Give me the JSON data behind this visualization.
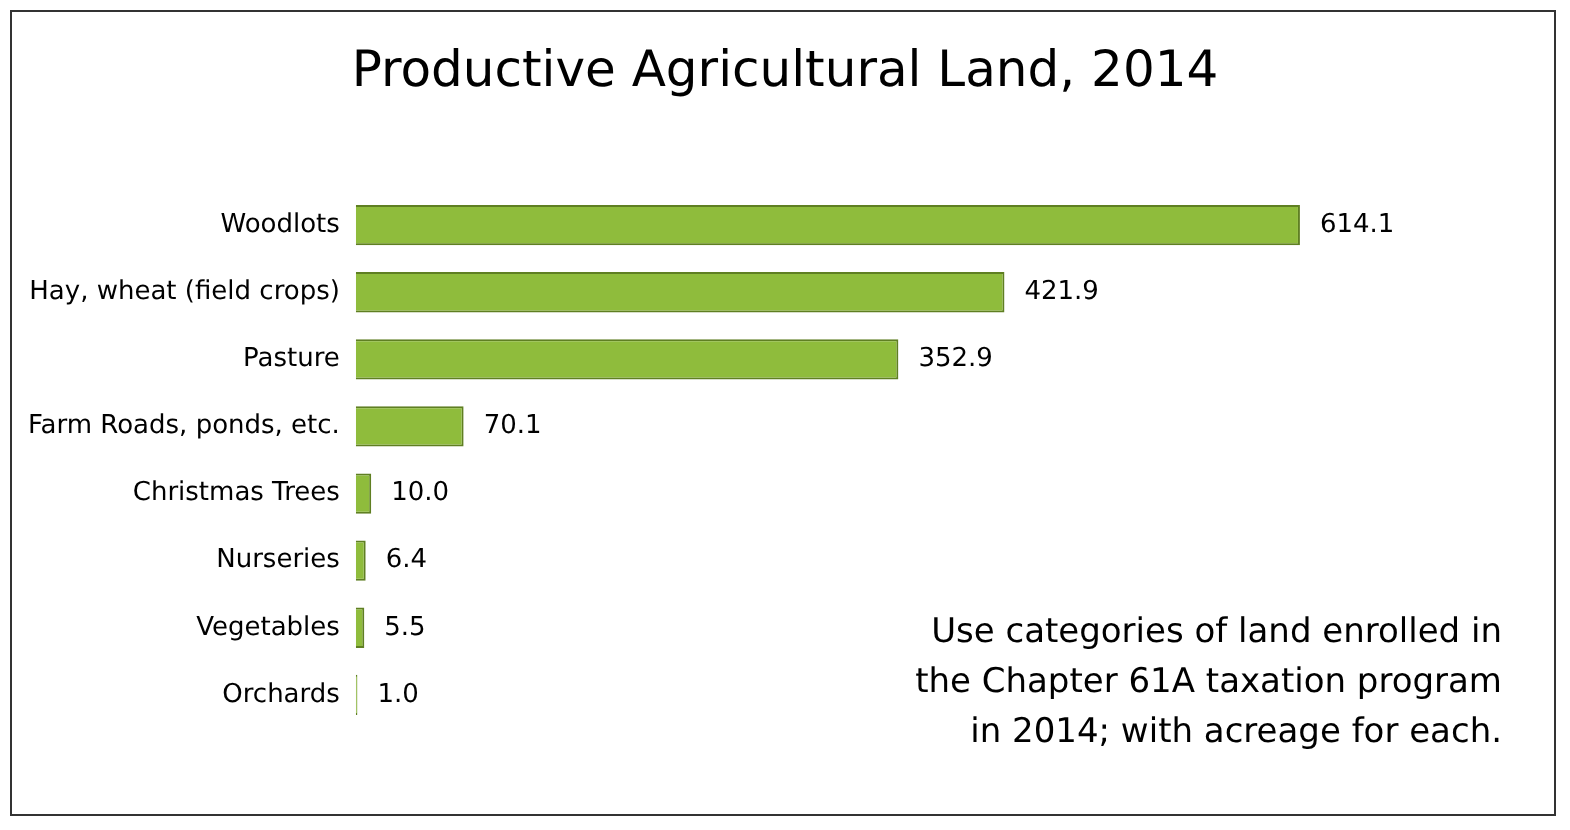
{
  "chart_data": {
    "type": "bar",
    "orientation": "horizontal",
    "title": "Productive Agricultural Land, 2014",
    "categories": [
      "Woodlots",
      "Hay, wheat (field crops)",
      "Pasture",
      "Farm Roads, ponds, etc.",
      "Christmas Trees",
      "Nurseries",
      "Vegetables",
      "Orchards"
    ],
    "values": [
      614.1,
      421.9,
      352.9,
      70.1,
      10.0,
      6.4,
      5.5,
      1.0
    ],
    "value_labels": [
      "614.1",
      "421.9",
      "352.9",
      "70.1",
      "10.0",
      "6.4",
      "5.5",
      "1.0"
    ],
    "color": "#8fbc3c",
    "tick_labels": "y",
    "grid": false,
    "legend": false,
    "annotations": [
      "Use categories of land enrolled in the Chapter 61A taxation program in 2014; with acreage for each."
    ]
  }
}
